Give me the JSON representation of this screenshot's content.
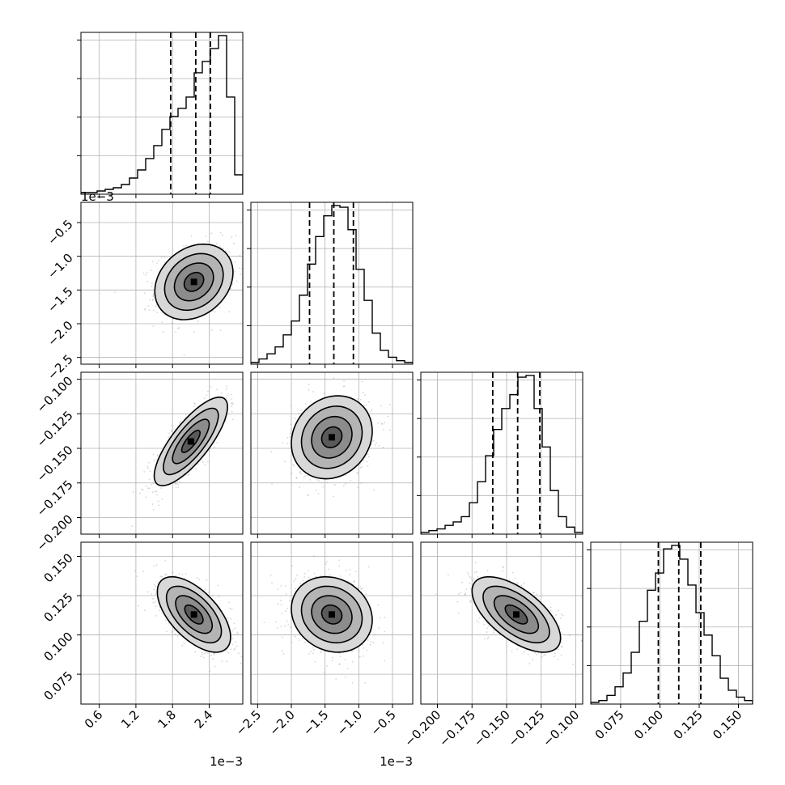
{
  "chart_data": {
    "type": "corner",
    "parameters": [
      {
        "id": "p0",
        "range": [
          0.3,
          2.95
        ],
        "ticks": [
          0.6,
          1.2,
          1.8,
          2.4
        ],
        "tick_labels": [
          "0.6",
          "1.2",
          "1.8",
          "2.4"
        ],
        "offset_label": "1e−3"
      },
      {
        "id": "p1",
        "range": [
          -2.6,
          -0.2
        ],
        "ticks": [
          -2.5,
          -2.0,
          -1.5,
          -1.0,
          -0.5
        ],
        "tick_labels": [
          "−2.5",
          "−2.0",
          "−1.5",
          "−1.0",
          "−0.5"
        ],
        "offset_label": "1e−3"
      },
      {
        "id": "p2",
        "range": [
          -0.212,
          -0.095
        ],
        "ticks": [
          -0.2,
          -0.175,
          -0.15,
          -0.125,
          -0.1
        ],
        "tick_labels": [
          "−0.200",
          "−0.175",
          "−0.150",
          "−0.125",
          "−0.100"
        ],
        "offset_label": ""
      },
      {
        "id": "p3",
        "range": [
          0.056,
          0.159
        ],
        "ticks": [
          0.075,
          0.1,
          0.125,
          0.15
        ],
        "tick_labels": [
          "0.075",
          "0.100",
          "0.125",
          "0.150"
        ],
        "offset_label": ""
      }
    ],
    "quantiles": [
      [
        1.77,
        2.18,
        2.42
      ],
      [
        -1.73,
        -1.37,
        -1.08
      ],
      [
        -0.16,
        -0.142,
        -0.126
      ],
      [
        0.099,
        0.112,
        0.126
      ]
    ],
    "histograms": [
      {
        "edges_range": [
          0.3,
          2.95
        ],
        "counts": [
          0.01,
          0.01,
          0.02,
          0.03,
          0.04,
          0.06,
          0.1,
          0.15,
          0.22,
          0.3,
          0.4,
          0.48,
          0.53,
          0.6,
          0.75,
          0.82,
          0.9,
          0.98,
          0.6,
          0.12
        ]
      },
      {
        "edges_range": [
          -2.6,
          -0.2
        ],
        "counts": [
          0.01,
          0.03,
          0.06,
          0.1,
          0.17,
          0.25,
          0.4,
          0.58,
          0.74,
          0.86,
          0.92,
          0.91,
          0.78,
          0.55,
          0.37,
          0.18,
          0.08,
          0.04,
          0.02,
          0.01
        ]
      },
      {
        "edges_range": [
          -0.212,
          -0.095
        ],
        "counts": [
          0.01,
          0.02,
          0.03,
          0.05,
          0.07,
          0.1,
          0.18,
          0.3,
          0.45,
          0.6,
          0.72,
          0.8,
          0.9,
          0.91,
          0.72,
          0.5,
          0.25,
          0.1,
          0.04,
          0.01
        ]
      },
      {
        "edges_range": [
          0.056,
          0.159
        ],
        "counts": [
          0.01,
          0.02,
          0.05,
          0.1,
          0.18,
          0.3,
          0.48,
          0.66,
          0.76,
          0.9,
          0.92,
          0.84,
          0.69,
          0.53,
          0.4,
          0.28,
          0.15,
          0.08,
          0.04,
          0.02
        ]
      }
    ],
    "pairs": [
      {
        "row": 1,
        "col": 0,
        "mean": [
          2.15,
          -1.38
        ],
        "sd": [
          0.32,
          0.28
        ],
        "corr": 0.25
      },
      {
        "row": 2,
        "col": 0,
        "mean": [
          2.1,
          -0.145
        ],
        "sd": [
          0.3,
          0.016
        ],
        "corr": 0.78
      },
      {
        "row": 2,
        "col": 1,
        "mean": [
          -1.4,
          -0.142
        ],
        "sd": [
          0.3,
          0.015
        ],
        "corr": 0.15
      },
      {
        "row": 3,
        "col": 0,
        "mean": [
          2.15,
          0.113
        ],
        "sd": [
          0.3,
          0.012
        ],
        "corr": -0.6
      },
      {
        "row": 3,
        "col": 1,
        "mean": [
          -1.4,
          0.113
        ],
        "sd": [
          0.3,
          0.012
        ],
        "corr": -0.15
      },
      {
        "row": 3,
        "col": 2,
        "mean": [
          -0.143,
          0.113
        ],
        "sd": [
          0.016,
          0.012
        ],
        "corr": -0.62
      }
    ],
    "grid": true,
    "contour_levels_sigma": [
      0.5,
      1.0,
      1.5,
      2.0
    ]
  }
}
